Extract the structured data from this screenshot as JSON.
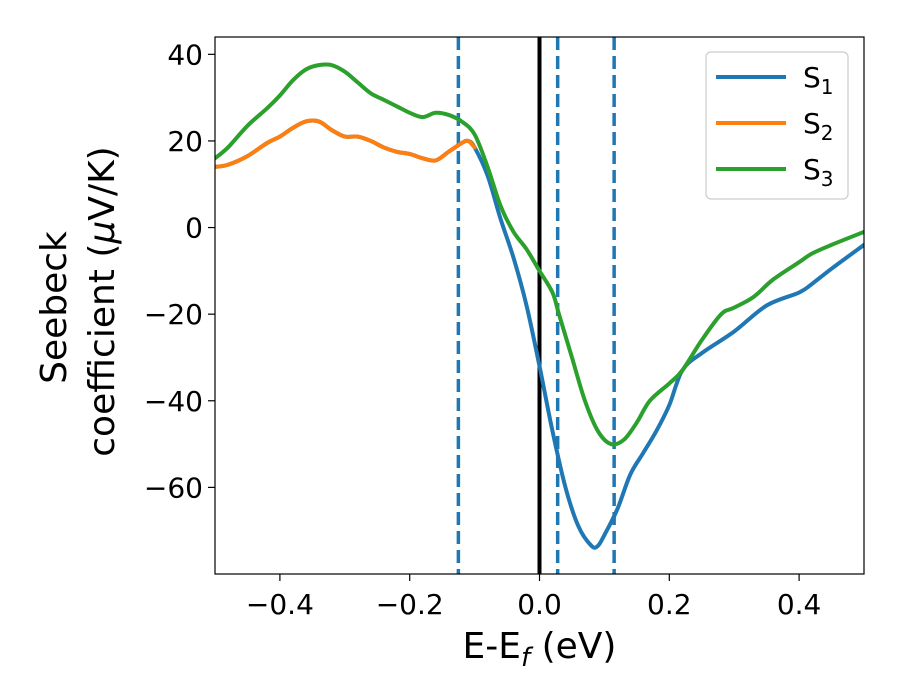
{
  "chart_data": {
    "type": "line",
    "xlabel": {
      "main": "E-E",
      "sub": "f",
      "tail": " (eV)"
    },
    "ylabel": {
      "line1": "Seebeck",
      "line2_prefix": "coefficient  (",
      "mu": "μ",
      "line2_suffix": "V/K)"
    },
    "xlim": [
      -0.5,
      0.5
    ],
    "ylim": [
      -80,
      44
    ],
    "xticks": [
      -0.4,
      -0.2,
      0.0,
      0.2,
      0.4
    ],
    "xtick_labels": [
      "−0.4",
      "−0.2",
      "0.0",
      "0.2",
      "0.4"
    ],
    "yticks": [
      40,
      20,
      0,
      -20,
      -40,
      -60
    ],
    "ytick_labels": [
      "40",
      "20",
      "0",
      "−20",
      "−40",
      "−60"
    ],
    "grid": false,
    "legend_position": "top-right",
    "vlines": [
      {
        "x": -0.125,
        "style": "dashed",
        "color": "#1f77b4"
      },
      {
        "x": 0.0,
        "style": "solid",
        "color": "#000000"
      },
      {
        "x": 0.028,
        "style": "dashed",
        "color": "#1f77b4"
      },
      {
        "x": 0.115,
        "style": "dashed",
        "color": "#1f77b4"
      }
    ],
    "series": [
      {
        "name": "S",
        "sub": "1",
        "color": "#1f77b4",
        "points": [
          [
            -0.5,
            14
          ],
          [
            -0.48,
            14.5
          ],
          [
            -0.45,
            16.5
          ],
          [
            -0.42,
            19.5
          ],
          [
            -0.4,
            21
          ],
          [
            -0.38,
            23
          ],
          [
            -0.36,
            24.5
          ],
          [
            -0.34,
            24.5
          ],
          [
            -0.32,
            22.5
          ],
          [
            -0.3,
            21
          ],
          [
            -0.28,
            21
          ],
          [
            -0.26,
            20
          ],
          [
            -0.24,
            18.5
          ],
          [
            -0.22,
            17.5
          ],
          [
            -0.2,
            17
          ],
          [
            -0.18,
            16
          ],
          [
            -0.16,
            15.5
          ],
          [
            -0.14,
            17.5
          ],
          [
            -0.12,
            19.5
          ],
          [
            -0.11,
            20
          ],
          [
            -0.1,
            18.5
          ],
          [
            -0.08,
            12
          ],
          [
            -0.06,
            2
          ],
          [
            -0.04,
            -7
          ],
          [
            -0.02,
            -18
          ],
          [
            0.0,
            -32
          ],
          [
            0.02,
            -47
          ],
          [
            0.04,
            -60
          ],
          [
            0.06,
            -69
          ],
          [
            0.08,
            -73.5
          ],
          [
            0.09,
            -73.5
          ],
          [
            0.1,
            -71
          ],
          [
            0.12,
            -65
          ],
          [
            0.14,
            -57
          ],
          [
            0.16,
            -52
          ],
          [
            0.18,
            -47
          ],
          [
            0.2,
            -41
          ],
          [
            0.22,
            -33
          ],
          [
            0.25,
            -29
          ],
          [
            0.3,
            -24
          ],
          [
            0.35,
            -18
          ],
          [
            0.4,
            -15
          ],
          [
            0.42,
            -13
          ],
          [
            0.45,
            -9.5
          ],
          [
            0.5,
            -4
          ]
        ]
      },
      {
        "name": "S",
        "sub": "2",
        "color": "#ff7f0e",
        "points": [
          [
            -0.5,
            14
          ],
          [
            -0.48,
            14.5
          ],
          [
            -0.45,
            16.5
          ],
          [
            -0.42,
            19.5
          ],
          [
            -0.4,
            21
          ],
          [
            -0.38,
            23
          ],
          [
            -0.36,
            24.5
          ],
          [
            -0.34,
            24.5
          ],
          [
            -0.32,
            22.5
          ],
          [
            -0.3,
            21
          ],
          [
            -0.28,
            21
          ],
          [
            -0.26,
            20
          ],
          [
            -0.24,
            18.5
          ],
          [
            -0.22,
            17.5
          ],
          [
            -0.2,
            17
          ],
          [
            -0.18,
            16
          ],
          [
            -0.16,
            15.5
          ],
          [
            -0.14,
            17.5
          ],
          [
            -0.12,
            19.5
          ],
          [
            -0.11,
            20
          ],
          [
            -0.1,
            18.5
          ]
        ]
      },
      {
        "name": "S",
        "sub": "3",
        "color": "#2ca02c",
        "points": [
          [
            -0.5,
            16
          ],
          [
            -0.48,
            18.5
          ],
          [
            -0.45,
            23.5
          ],
          [
            -0.42,
            27.5
          ],
          [
            -0.4,
            30.5
          ],
          [
            -0.38,
            34
          ],
          [
            -0.36,
            36.5
          ],
          [
            -0.34,
            37.5
          ],
          [
            -0.32,
            37.5
          ],
          [
            -0.3,
            36
          ],
          [
            -0.28,
            33.5
          ],
          [
            -0.26,
            31
          ],
          [
            -0.24,
            29.5
          ],
          [
            -0.22,
            28
          ],
          [
            -0.2,
            26.5
          ],
          [
            -0.18,
            25.5
          ],
          [
            -0.16,
            26.5
          ],
          [
            -0.14,
            26
          ],
          [
            -0.12,
            24.5
          ],
          [
            -0.1,
            21.5
          ],
          [
            -0.08,
            14
          ],
          [
            -0.06,
            5
          ],
          [
            -0.04,
            -1
          ],
          [
            -0.02,
            -5
          ],
          [
            0.0,
            -10
          ],
          [
            0.02,
            -15
          ],
          [
            0.03,
            -20
          ],
          [
            0.05,
            -30
          ],
          [
            0.07,
            -40
          ],
          [
            0.09,
            -47
          ],
          [
            0.11,
            -50
          ],
          [
            0.13,
            -49
          ],
          [
            0.15,
            -45
          ],
          [
            0.17,
            -40
          ],
          [
            0.2,
            -36
          ],
          [
            0.22,
            -33
          ],
          [
            0.25,
            -26
          ],
          [
            0.28,
            -20
          ],
          [
            0.3,
            -18.5
          ],
          [
            0.33,
            -16
          ],
          [
            0.36,
            -12
          ],
          [
            0.4,
            -8
          ],
          [
            0.42,
            -6
          ],
          [
            0.45,
            -4
          ],
          [
            0.5,
            -1
          ]
        ]
      }
    ]
  }
}
